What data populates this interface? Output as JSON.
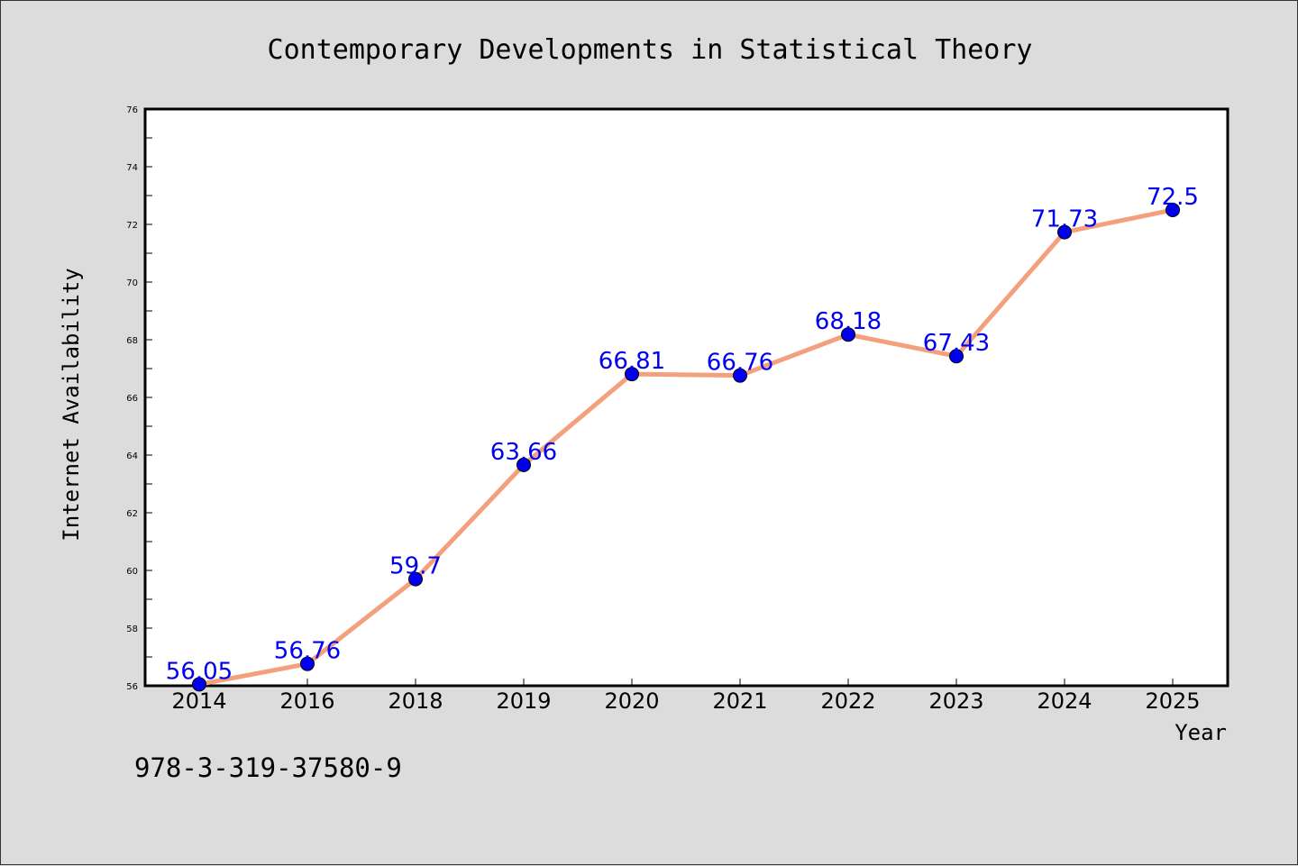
{
  "chart_data": {
    "type": "line",
    "title": "Contemporary Developments in Statistical Theory",
    "xlabel": "Year",
    "ylabel": "Internet Availability",
    "categories": [
      "2014",
      "2016",
      "2018",
      "2019",
      "2020",
      "2021",
      "2022",
      "2023",
      "2024",
      "2025"
    ],
    "values": [
      56.05,
      56.76,
      59.7,
      63.66,
      66.81,
      66.76,
      68.18,
      67.43,
      71.73,
      72.5
    ],
    "data_labels": [
      "56.05",
      "56.76",
      "59.7",
      "63.66",
      "66.81",
      "66.76",
      "68.18",
      "67.43",
      "71.73",
      "72.5"
    ],
    "y_ticks": [
      "56",
      "58",
      "60",
      "62",
      "64",
      "66",
      "68",
      "70",
      "72",
      "74",
      "76"
    ],
    "ylim": [
      56,
      76
    ],
    "grid": false,
    "colors": {
      "line": "#f4a07e",
      "marker": "#0000ee",
      "data_label": "#0000ee"
    }
  },
  "footer": {
    "isbn": "978-3-319-37580-9"
  }
}
